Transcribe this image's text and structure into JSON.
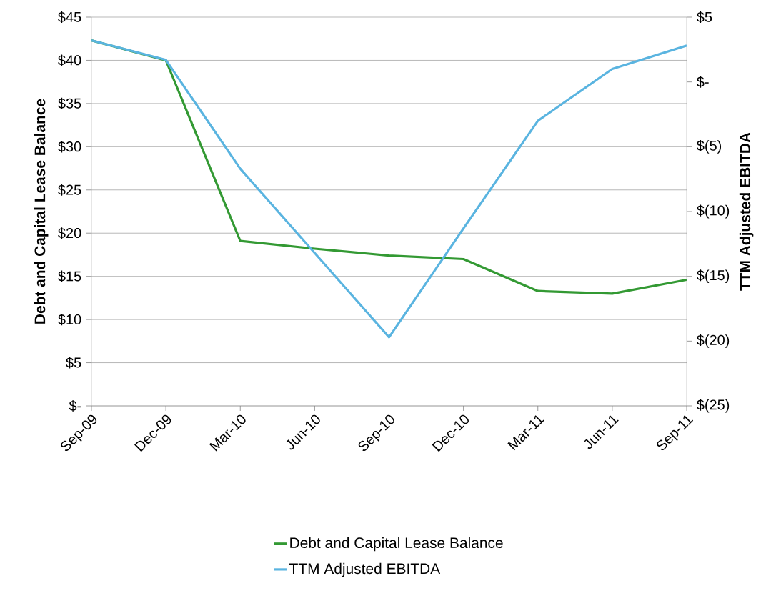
{
  "chart_data": {
    "type": "line",
    "ylabel": "Debt and Capital Lease Balance",
    "y2label": "TTM Adjusted EBITDA",
    "categories": [
      "Sep-09",
      "Dec-09",
      "Mar-10",
      "Jun-10",
      "Sep-10",
      "Dec-10",
      "Mar-11",
      "Jun-11",
      "Sep-11"
    ],
    "series": [
      {
        "name": "Debt and Capital Lease Balance",
        "color": "#339933",
        "values": [
          42.3,
          40.0,
          19.1,
          18.2,
          17.4,
          17.0,
          13.3,
          13.0,
          14.6
        ]
      },
      {
        "name": "TTM Adjusted EBITDA",
        "color": "#5ab4e0",
        "axis": "y2",
        "values": [
          3.2,
          1.7,
          -6.7,
          -13.2,
          -19.7,
          -11.3,
          -3.0,
          1.0,
          2.8
        ]
      }
    ],
    "ylim": [
      0,
      45
    ],
    "yticks": [
      {
        "value": 0,
        "label": "$-"
      },
      {
        "value": 5,
        "label": "$5"
      },
      {
        "value": 10,
        "label": "$10"
      },
      {
        "value": 15,
        "label": "$15"
      },
      {
        "value": 20,
        "label": "$20"
      },
      {
        "value": 25,
        "label": "$25"
      },
      {
        "value": 30,
        "label": "$30"
      },
      {
        "value": 35,
        "label": "$35"
      },
      {
        "value": 40,
        "label": "$40"
      },
      {
        "value": 45,
        "label": "$45"
      }
    ],
    "y2lim": [
      -25,
      5
    ],
    "y2ticks": [
      {
        "value": -25,
        "label": "$(25)"
      },
      {
        "value": -20,
        "label": "$(20)"
      },
      {
        "value": -15,
        "label": "$(15)"
      },
      {
        "value": -10,
        "label": "$(10)"
      },
      {
        "value": -5,
        "label": "$(5)"
      },
      {
        "value": 0,
        "label": "$-"
      },
      {
        "value": 5,
        "label": "$5"
      }
    ],
    "grid": "y",
    "legend": "bottom",
    "marker": "none",
    "line_style": "solid"
  }
}
